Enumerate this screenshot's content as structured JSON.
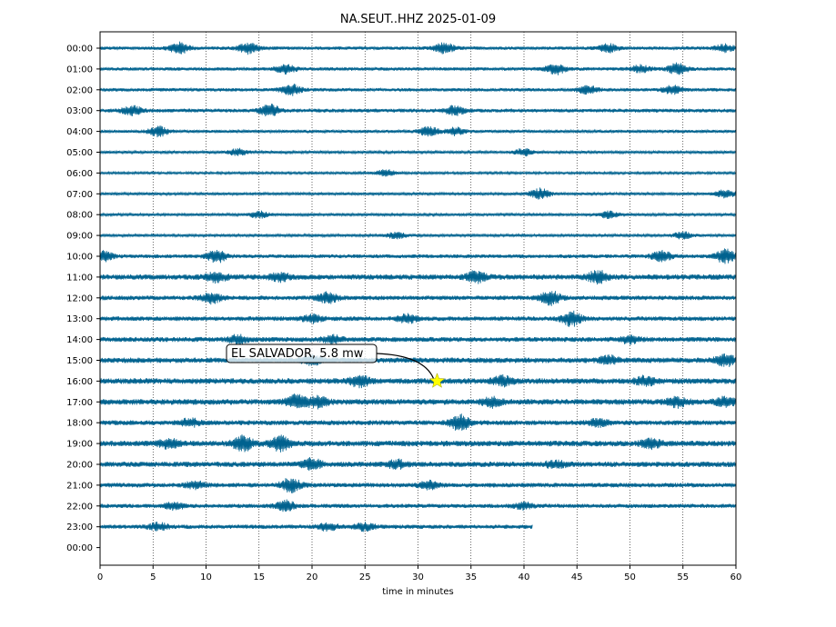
{
  "chart_data": {
    "type": "line",
    "title": "NA.SEUT..HHZ 2025-01-09",
    "xlabel": "time in minutes",
    "ylabel": "",
    "xlim": [
      0,
      60
    ],
    "x_ticks": [
      "0",
      "5",
      "10",
      "15",
      "20",
      "25",
      "30",
      "35",
      "40",
      "45",
      "50",
      "55",
      "60"
    ],
    "y_ticks": [
      "00:00",
      "01:00",
      "02:00",
      "03:00",
      "04:00",
      "05:00",
      "06:00",
      "07:00",
      "08:00",
      "09:00",
      "10:00",
      "11:00",
      "12:00",
      "13:00",
      "14:00",
      "15:00",
      "16:00",
      "17:00",
      "18:00",
      "19:00",
      "20:00",
      "21:00",
      "22:00",
      "23:00",
      "00:00"
    ],
    "grid": "vertical dotted lines at each 5-minute tick",
    "trace_color": "#00628f",
    "traces": [
      {
        "hour": "00:00",
        "end_minute": 60,
        "base": 0.45,
        "bursts": [
          [
            7.5,
            1.8
          ],
          [
            14,
            1.8
          ],
          [
            32.5,
            1.7
          ],
          [
            48,
            1.4
          ],
          [
            59,
            1.3
          ]
        ]
      },
      {
        "hour": "01:00",
        "end_minute": 60,
        "base": 0.45,
        "bursts": [
          [
            17.5,
            1.5
          ],
          [
            43,
            1.8
          ],
          [
            54.5,
            1.8
          ],
          [
            51,
            1.3
          ]
        ]
      },
      {
        "hour": "02:00",
        "end_minute": 60,
        "base": 0.45,
        "bursts": [
          [
            18,
            1.8
          ],
          [
            46,
            1.4
          ],
          [
            54,
            1.4
          ]
        ]
      },
      {
        "hour": "03:00",
        "end_minute": 60,
        "base": 0.5,
        "bursts": [
          [
            3,
            1.6
          ],
          [
            16,
            2.0
          ],
          [
            33.5,
            1.6
          ]
        ]
      },
      {
        "hour": "04:00",
        "end_minute": 60,
        "base": 0.4,
        "bursts": [
          [
            5.5,
            1.6
          ],
          [
            31,
            1.5
          ],
          [
            33.5,
            1.3
          ]
        ]
      },
      {
        "hour": "05:00",
        "end_minute": 60,
        "base": 0.35,
        "bursts": [
          [
            13,
            1.2
          ],
          [
            40,
            1.2
          ]
        ]
      },
      {
        "hour": "06:00",
        "end_minute": 60,
        "base": 0.3,
        "bursts": [
          [
            27,
            1.1
          ]
        ]
      },
      {
        "hour": "07:00",
        "end_minute": 60,
        "base": 0.35,
        "bursts": [
          [
            41.5,
            1.7
          ],
          [
            59,
            1.3
          ]
        ]
      },
      {
        "hour": "08:00",
        "end_minute": 60,
        "base": 0.35,
        "bursts": [
          [
            15,
            1.2
          ],
          [
            48,
            1.2
          ]
        ]
      },
      {
        "hour": "09:00",
        "end_minute": 60,
        "base": 0.35,
        "bursts": [
          [
            28,
            1.1
          ],
          [
            55,
            1.2
          ]
        ]
      },
      {
        "hour": "10:00",
        "end_minute": 60,
        "base": 0.5,
        "bursts": [
          [
            0.3,
            1.9
          ],
          [
            11,
            2.0
          ],
          [
            53,
            1.8
          ],
          [
            59,
            2.2
          ]
        ]
      },
      {
        "hour": "11:00",
        "end_minute": 60,
        "base": 0.7,
        "bursts": [
          [
            11,
            1.8
          ],
          [
            17,
            1.6
          ],
          [
            35.5,
            2.0
          ],
          [
            47,
            2.2
          ]
        ]
      },
      {
        "hour": "12:00",
        "end_minute": 60,
        "base": 0.6,
        "bursts": [
          [
            10.5,
            1.8
          ],
          [
            21.5,
            1.8
          ],
          [
            42.5,
            2.2
          ]
        ]
      },
      {
        "hour": "13:00",
        "end_minute": 60,
        "base": 0.6,
        "bursts": [
          [
            20,
            1.5
          ],
          [
            44.5,
            2.3
          ],
          [
            29,
            1.5
          ]
        ]
      },
      {
        "hour": "14:00",
        "end_minute": 60,
        "base": 0.65,
        "bursts": [
          [
            13,
            1.6
          ],
          [
            22,
            1.5
          ],
          [
            50,
            1.5
          ]
        ]
      },
      {
        "hour": "15:00",
        "end_minute": 60,
        "base": 0.7,
        "bursts": [
          [
            20,
            1.8
          ],
          [
            48,
            1.6
          ],
          [
            59,
            2.0
          ]
        ]
      },
      {
        "hour": "16:00",
        "end_minute": 60,
        "base": 0.75,
        "bursts": [
          [
            24.5,
            2.0
          ],
          [
            38,
            1.8
          ],
          [
            51.5,
            1.8
          ]
        ]
      },
      {
        "hour": "17:00",
        "end_minute": 60,
        "base": 0.75,
        "bursts": [
          [
            18.5,
            2.3
          ],
          [
            20.5,
            2.0
          ],
          [
            37,
            1.8
          ],
          [
            54.5,
            1.8
          ],
          [
            59,
            1.7
          ]
        ]
      },
      {
        "hour": "18:00",
        "end_minute": 60,
        "base": 0.65,
        "bursts": [
          [
            8.5,
            1.5
          ],
          [
            34,
            2.6
          ],
          [
            47,
            1.5
          ]
        ]
      },
      {
        "hour": "19:00",
        "end_minute": 60,
        "base": 0.75,
        "bursts": [
          [
            13.5,
            2.6
          ],
          [
            17,
            2.4
          ],
          [
            6.5,
            1.7
          ],
          [
            52,
            1.8
          ]
        ]
      },
      {
        "hour": "20:00",
        "end_minute": 60,
        "base": 0.7,
        "bursts": [
          [
            20,
            2.0
          ],
          [
            28,
            1.6
          ],
          [
            43,
            1.5
          ]
        ]
      },
      {
        "hour": "21:00",
        "end_minute": 60,
        "base": 0.6,
        "bursts": [
          [
            18,
            2.3
          ],
          [
            9,
            1.4
          ],
          [
            31,
            1.5
          ]
        ]
      },
      {
        "hour": "22:00",
        "end_minute": 60,
        "base": 0.55,
        "bursts": [
          [
            17.5,
            1.8
          ],
          [
            7,
            1.3
          ],
          [
            40,
            1.3
          ]
        ]
      },
      {
        "hour": "23:00",
        "end_minute": 40.8,
        "base": 0.55,
        "bursts": [
          [
            5.5,
            1.4
          ],
          [
            21.5,
            1.4
          ],
          [
            25,
            1.4
          ]
        ]
      }
    ],
    "annotation": {
      "text": "EL SALVADOR, 5.8 mw",
      "minute": 31.8,
      "hour_row": "16:00",
      "marker": "star",
      "marker_color": "#ffff00"
    }
  }
}
